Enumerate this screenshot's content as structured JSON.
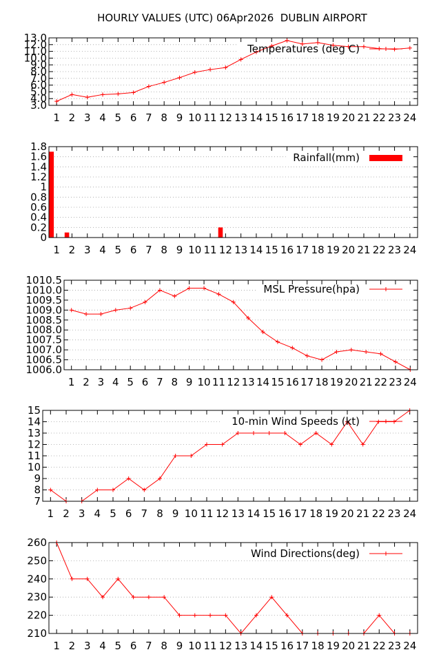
{
  "page_title": "HOURLY VALUES (UTC) 06Apr2026  DUBLIN AIRPORT",
  "colors": {
    "series": "#ff0000",
    "grid": "#a0a0a0",
    "frame": "#000000",
    "background": "#ffffff"
  },
  "chart_data": [
    {
      "type": "line",
      "legend": "Temperatures (deg C)",
      "legend_position": "top-right",
      "grid": true,
      "x": [
        1,
        2,
        3,
        4,
        5,
        6,
        7,
        8,
        9,
        10,
        11,
        12,
        13,
        14,
        15,
        16,
        17,
        18,
        19,
        20,
        21,
        22,
        23,
        24
      ],
      "x_ticks": [
        "1",
        "2",
        "3",
        "4",
        "5",
        "6",
        "7",
        "8",
        "9",
        "10",
        "11",
        "12",
        "13",
        "14",
        "15",
        "16",
        "17",
        "18",
        "19",
        "20",
        "21",
        "22",
        "23",
        "24"
      ],
      "values": [
        3.6,
        4.6,
        4.2,
        4.6,
        4.7,
        4.9,
        5.8,
        6.4,
        7.1,
        7.9,
        8.3,
        8.6,
        9.8,
        10.9,
        11.8,
        12.6,
        12.1,
        12.3,
        11.9,
        11.7,
        11.7,
        11.4,
        11.3,
        11.5
      ],
      "ylim": [
        3,
        13
      ],
      "y_ticks": [
        "13.0",
        "12.0",
        "11.0",
        "10.0",
        "9.0",
        "8.0",
        "7.0",
        "6.0",
        "5.0",
        "4.0",
        "3.0"
      ],
      "y_tick_values": [
        13,
        12,
        11,
        10,
        9,
        8,
        7,
        6,
        5,
        4,
        3
      ]
    },
    {
      "type": "bar",
      "legend": "Rainfall(mm)",
      "legend_position": "top-right",
      "grid": true,
      "x": [
        1,
        2,
        3,
        4,
        5,
        6,
        7,
        8,
        9,
        10,
        11,
        12,
        13,
        14,
        15,
        16,
        17,
        18,
        19,
        20,
        21,
        22,
        23,
        24
      ],
      "x_ticks": [
        "1",
        "2",
        "3",
        "4",
        "5",
        "6",
        "7",
        "8",
        "9",
        "10",
        "11",
        "12",
        "13",
        "14",
        "15",
        "16",
        "17",
        "18",
        "19",
        "20",
        "21",
        "22",
        "23",
        "24"
      ],
      "values": [
        1.7,
        0.1,
        0,
        0,
        0,
        0,
        0,
        0,
        0,
        0,
        0,
        0.2,
        0,
        0,
        0,
        0,
        0,
        0,
        0,
        0,
        0,
        0,
        0,
        0
      ],
      "ylim": [
        0,
        1.8
      ],
      "y_ticks": [
        "1.8",
        "1.6",
        "1.4",
        "1.2",
        "1",
        "0.8",
        "0.6",
        "0.4",
        "0.2",
        "0"
      ],
      "y_tick_values": [
        1.8,
        1.6,
        1.4,
        1.2,
        1,
        0.8,
        0.6,
        0.4,
        0.2,
        0
      ]
    },
    {
      "type": "line",
      "legend": "MSL Pressure(hpa)",
      "legend_position": "top-right",
      "grid": true,
      "x": [
        1,
        2,
        3,
        4,
        5,
        6,
        7,
        8,
        9,
        10,
        11,
        12,
        13,
        14,
        15,
        16,
        17,
        18,
        19,
        20,
        21,
        22,
        23,
        24
      ],
      "x_ticks": [
        "1",
        "2",
        "3",
        "4",
        "5",
        "6",
        "7",
        "8",
        "9",
        "10",
        "11",
        "12",
        "13",
        "14",
        "15",
        "16",
        "17",
        "18",
        "19",
        "20",
        "21",
        "22",
        "23",
        "24"
      ],
      "values": [
        1009.0,
        1008.8,
        1008.8,
        1009.0,
        1009.1,
        1009.4,
        1010.0,
        1009.7,
        1010.1,
        1010.1,
        1009.8,
        1009.4,
        1008.6,
        1007.9,
        1007.4,
        1007.1,
        1006.7,
        1006.5,
        1006.9,
        1007.0,
        1006.9,
        1006.8,
        1006.4,
        1006.0
      ],
      "ylim": [
        1006,
        1010.5
      ],
      "y_ticks": [
        "1010.5",
        "1010.0",
        "1009.5",
        "1009.0",
        "1008.5",
        "1008.0",
        "1007.5",
        "1007.0",
        "1006.5",
        "1006.0"
      ],
      "y_tick_values": [
        1010.5,
        1010,
        1009.5,
        1009,
        1008.5,
        1008,
        1007.5,
        1007,
        1006.5,
        1006
      ]
    },
    {
      "type": "line",
      "legend": "10-min Wind Speeds (kt)",
      "legend_position": "top-right",
      "grid": true,
      "x": [
        1,
        2,
        3,
        4,
        5,
        6,
        7,
        8,
        9,
        10,
        11,
        12,
        13,
        14,
        15,
        16,
        17,
        18,
        19,
        20,
        21,
        22,
        23,
        24
      ],
      "x_ticks": [
        "1",
        "2",
        "3",
        "4",
        "5",
        "6",
        "7",
        "8",
        "9",
        "10",
        "11",
        "12",
        "13",
        "14",
        "15",
        "16",
        "17",
        "18",
        "19",
        "20",
        "21",
        "22",
        "23",
        "24"
      ],
      "values": [
        8,
        7,
        7,
        8,
        8,
        9,
        8,
        9,
        11,
        11,
        12,
        12,
        13,
        13,
        13,
        13,
        12,
        13,
        12,
        14,
        12,
        14,
        14,
        15
      ],
      "ylim": [
        7,
        15
      ],
      "y_ticks": [
        "15",
        "14",
        "13",
        "12",
        "11",
        "10",
        "9",
        "8",
        "7"
      ],
      "y_tick_values": [
        15,
        14,
        13,
        12,
        11,
        10,
        9,
        8,
        7
      ]
    },
    {
      "type": "line",
      "legend": "Wind Directions(deg)",
      "legend_position": "top-right",
      "grid": true,
      "x": [
        1,
        2,
        3,
        4,
        5,
        6,
        7,
        8,
        9,
        10,
        11,
        12,
        13,
        14,
        15,
        16,
        17,
        18,
        19,
        20,
        21,
        22,
        23,
        24
      ],
      "x_ticks": [
        "1",
        "2",
        "3",
        "4",
        "5",
        "6",
        "7",
        "8",
        "9",
        "10",
        "11",
        "12",
        "13",
        "14",
        "15",
        "16",
        "17",
        "18",
        "19",
        "20",
        "21",
        "22",
        "23",
        "24"
      ],
      "values": [
        260,
        240,
        240,
        230,
        240,
        230,
        230,
        230,
        220,
        220,
        220,
        220,
        210,
        220,
        230,
        220,
        210,
        210,
        210,
        210,
        210,
        220,
        210,
        210
      ],
      "ylim": [
        210,
        260
      ],
      "y_ticks": [
        "260",
        "250",
        "240",
        "230",
        "220",
        "210"
      ],
      "y_tick_values": [
        260,
        250,
        240,
        230,
        220,
        210
      ]
    }
  ]
}
